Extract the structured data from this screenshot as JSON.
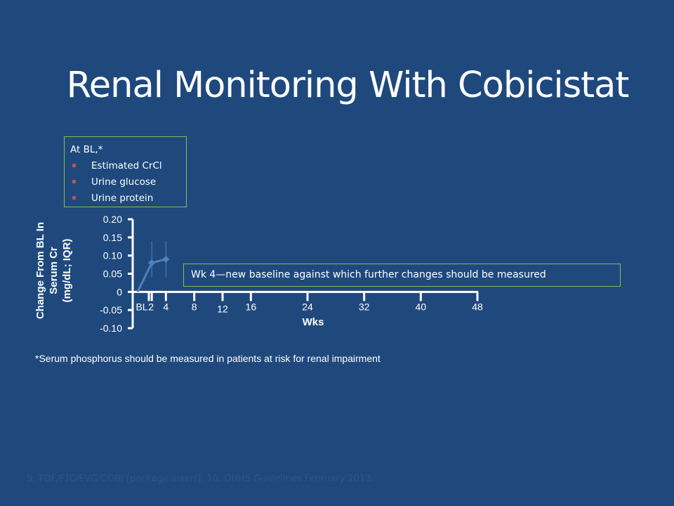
{
  "slide": {
    "title": "Renal Monitoring With Cobicistat",
    "bl_box": {
      "heading": "At BL,*",
      "items": [
        "Estimated CrCl",
        "Urine glucose",
        "Urine protein"
      ]
    },
    "callout": "Wk 4—new baseline against which further changes should be measured",
    "footnote": "*Serum phosphorus should be measured in patients at risk for renal impairment",
    "references": "9. TDF/FTC/EVG/COBI [package insert]. 10. DHHS Guidelines February 2013."
  },
  "colors": {
    "background": "#1F497D",
    "line": "#4F81BD",
    "box_border": "#8DB85A",
    "bullet": "#C0504D"
  },
  "chart_data": {
    "type": "line",
    "title": "",
    "ylabel_lines": [
      "Change From BL In",
      "Serum Cr",
      "(mg/dL; IQR)"
    ],
    "xlabel": "Wks",
    "ylim": [
      -0.1,
      0.2
    ],
    "y_ticks": [
      "0.20",
      "0.15",
      "0.10",
      "0.05",
      "0",
      "-0.05",
      "-0.10"
    ],
    "y_tick_values": [
      0.2,
      0.15,
      0.1,
      0.05,
      0,
      -0.05,
      -0.1
    ],
    "x_ticks": [
      "BL",
      "2",
      "4",
      "8",
      "12",
      "16",
      "24",
      "32",
      "40",
      "48"
    ],
    "x_tick_values": [
      0,
      2,
      4,
      8,
      12,
      16,
      24,
      32,
      40,
      48
    ],
    "series": [
      {
        "x": [
          0,
          2,
          4
        ],
        "y": [
          0,
          0.08,
          0.09
        ],
        "iqr_low": [
          0,
          0.04,
          0.04
        ],
        "iqr_high": [
          0,
          0.14,
          0.14
        ]
      }
    ]
  }
}
